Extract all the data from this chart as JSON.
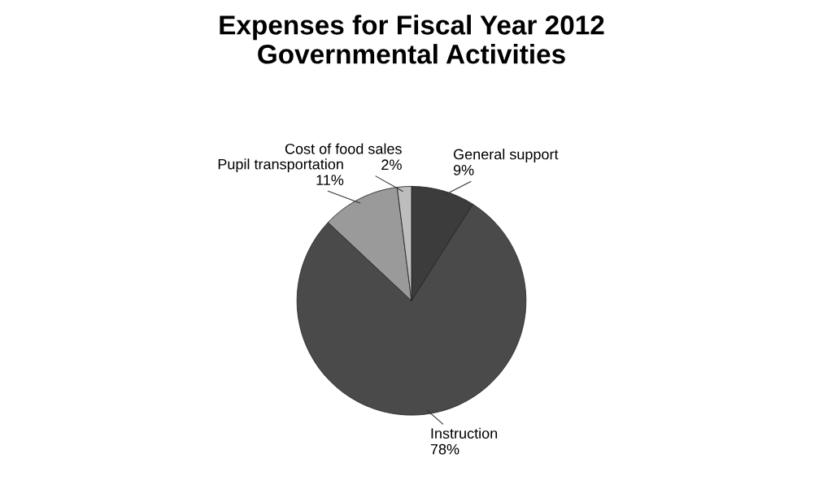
{
  "chart_data": {
    "type": "pie",
    "title": "Expenses for Fiscal Year 2012\nGovernmental Activities",
    "categories": [
      "General support",
      "Instruction",
      "Pupil transportation",
      "Cost of food sales"
    ],
    "values": [
      9,
      78,
      11,
      2
    ],
    "colors": [
      "#3c3c3c",
      "#4a4a4a",
      "#9a9a9a",
      "#bdbdbd"
    ],
    "value_labels": [
      "9%",
      "78%",
      "11%",
      "2%"
    ],
    "legend": false
  }
}
